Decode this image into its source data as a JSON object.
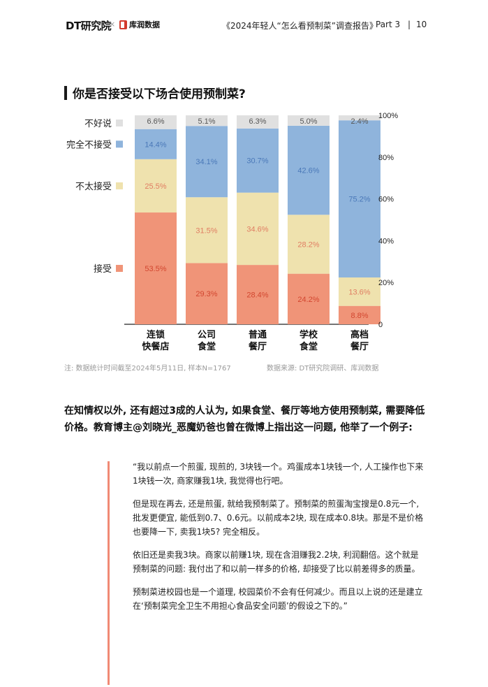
{
  "header": {
    "logo_dt": "DT研究院",
    "logo_ku": "库润数据",
    "title": "《2024年轻人“怎么看预制菜”调查报告》",
    "part": "Part 3",
    "separator": "|",
    "page": "10"
  },
  "section_title": "你是否接受以下场合使用预制菜?",
  "chart_data": {
    "type": "bar",
    "stacked": true,
    "categories": [
      "连锁\n快餐店",
      "公司\n食堂",
      "普通\n餐厅",
      "学校\n食堂",
      "高档\n餐厅"
    ],
    "series": [
      {
        "name": "接受",
        "values": [
          53.5,
          29.3,
          28.4,
          24.2,
          8.8
        ],
        "color": "#f09478"
      },
      {
        "name": "不太接受",
        "values": [
          25.5,
          31.5,
          34.6,
          28.2,
          13.6
        ],
        "color": "#efe2ae"
      },
      {
        "name": "完全不接受",
        "values": [
          14.4,
          34.1,
          30.7,
          42.6,
          75.2
        ],
        "color": "#8fb4dc"
      },
      {
        "name": "不好说",
        "values": [
          6.6,
          5.1,
          6.3,
          5.0,
          2.4
        ],
        "color": "#e0e0e0"
      }
    ],
    "label_colors": {
      "接受": "#d2462f",
      "不太接受": [
        "#e07d62",
        "#e07d62",
        "#e07d62",
        "#e07d62",
        "#e07d62"
      ],
      "完全不接受": "#4a78b8",
      "不好说": "#555555"
    },
    "yticks": [
      "0",
      "20%",
      "40%",
      "60%",
      "80%",
      "100%"
    ],
    "ylim": [
      0,
      100
    ],
    "legend_position": "left"
  },
  "footnote": "注: 数据统计时间截至2024年5月11日, 样本N=1767",
  "source": "数据来源: DT研究院调研、库润数据",
  "paragraph": "在知情权以外, 还有超过3成的人认为, 如果食堂、餐厅等地方使用预制菜, 需要降低价格。教育博主@刘晓光_恶魔奶爸也曾在微博上指出这一问题, 他举了一个例子:",
  "quote": {
    "p1": "“我以前点一个煎蛋, 现煎的, 3块钱一个。鸡蛋成本1块钱一个, 人工操作也下来1块钱一次, 商家赚我1块, 我觉得也行吧。",
    "p2": "但是现在再去, 还是煎蛋, 就给我预制菜了。预制菜的煎蛋淘宝搜是0.8元一个, 批发更便宜, 能低到0.7、0.6元。以前成本2块, 现在成本0.8块。那是不是价格也要降一下, 卖我1块5? 完全相反。",
    "p3": "依旧还是卖我3块。商家以前赚1块, 现在含泪赚我2.2块, 利润翻倍。这个就是预制菜的问题: 我付出了和以前一样多的价格, 却接受了比以前差得多的质量。",
    "p4": "预制菜进校园也是一个道理, 校园菜价不会有任何减少。而且以上说的还是建立在‘预制菜完全卫生不用担心食品安全问题’的假设之下的。”"
  }
}
